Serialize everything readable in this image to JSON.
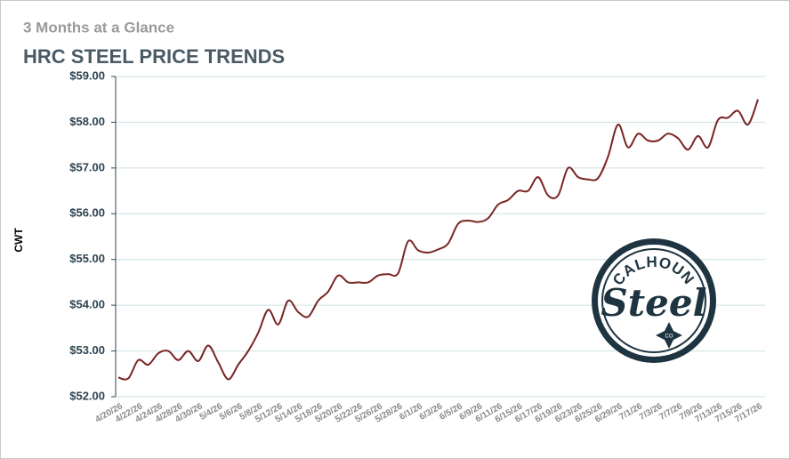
{
  "chart_data": {
    "type": "line",
    "subtitle": "3 Months at a Glance",
    "title": "HRC STEEL PRICE TRENDS",
    "y_label": "CWT",
    "categories": [
      "4/20/26",
      null,
      "4/22/26",
      null,
      "4/24/26",
      null,
      "4/28/26",
      null,
      "4/30/26",
      null,
      "5/4/26",
      null,
      "5/6/26",
      null,
      "5/8/26",
      null,
      "5/12/26",
      null,
      "5/14/26",
      null,
      "5/18/26",
      null,
      "5/20/26",
      null,
      "5/22/26",
      null,
      "5/26/26",
      null,
      "5/28/26",
      null,
      "6/1/26",
      null,
      "6/3/26",
      null,
      "6/5/26",
      null,
      "6/9/26",
      null,
      "6/11/26",
      null,
      "6/15/26",
      null,
      "6/17/26",
      null,
      "6/19/26",
      null,
      "6/23/26",
      null,
      "6/25/26",
      null,
      "6/29/26",
      null,
      "7/1/26",
      null,
      "7/3/26",
      null,
      "7/7/26",
      null,
      "7/9/26",
      null,
      "7/13/26",
      null,
      "7/15/26",
      null,
      "7/17/26"
    ],
    "series": [
      {
        "name": "HRC Steel Price",
        "color": "#7a2424",
        "values": [
          52.42,
          52.4,
          52.8,
          52.7,
          52.95,
          53.0,
          52.8,
          53.0,
          52.78,
          53.12,
          52.75,
          52.38,
          52.7,
          53.0,
          53.4,
          53.9,
          53.58,
          54.1,
          53.85,
          53.75,
          54.1,
          54.3,
          54.65,
          54.5,
          54.5,
          54.5,
          54.65,
          54.68,
          54.7,
          55.4,
          55.2,
          55.15,
          55.22,
          55.35,
          55.78,
          55.85,
          55.82,
          55.9,
          56.2,
          56.3,
          56.5,
          56.5,
          56.8,
          56.4,
          56.4,
          57.0,
          56.8,
          56.75,
          56.78,
          57.25,
          57.95,
          57.45,
          57.75,
          57.6,
          57.6,
          57.75,
          57.65,
          57.4,
          57.7,
          57.45,
          58.05,
          58.1,
          58.25,
          57.95,
          58.5
        ]
      }
    ],
    "ylim": [
      52,
      59
    ],
    "yticks": [
      {
        "value": 52,
        "label": "$52.00"
      },
      {
        "value": 53,
        "label": "$53.00"
      },
      {
        "value": 54,
        "label": "$54.00"
      },
      {
        "value": 55,
        "label": "$55.00"
      },
      {
        "value": 56,
        "label": "$56.00"
      },
      {
        "value": 57,
        "label": "$57.00"
      },
      {
        "value": 58,
        "label": "$58.00"
      },
      {
        "value": 59,
        "label": "$59.00"
      }
    ],
    "grid": true,
    "logo": {
      "top": "CALHOUN",
      "word": "Steel",
      "badge": "CO"
    }
  }
}
